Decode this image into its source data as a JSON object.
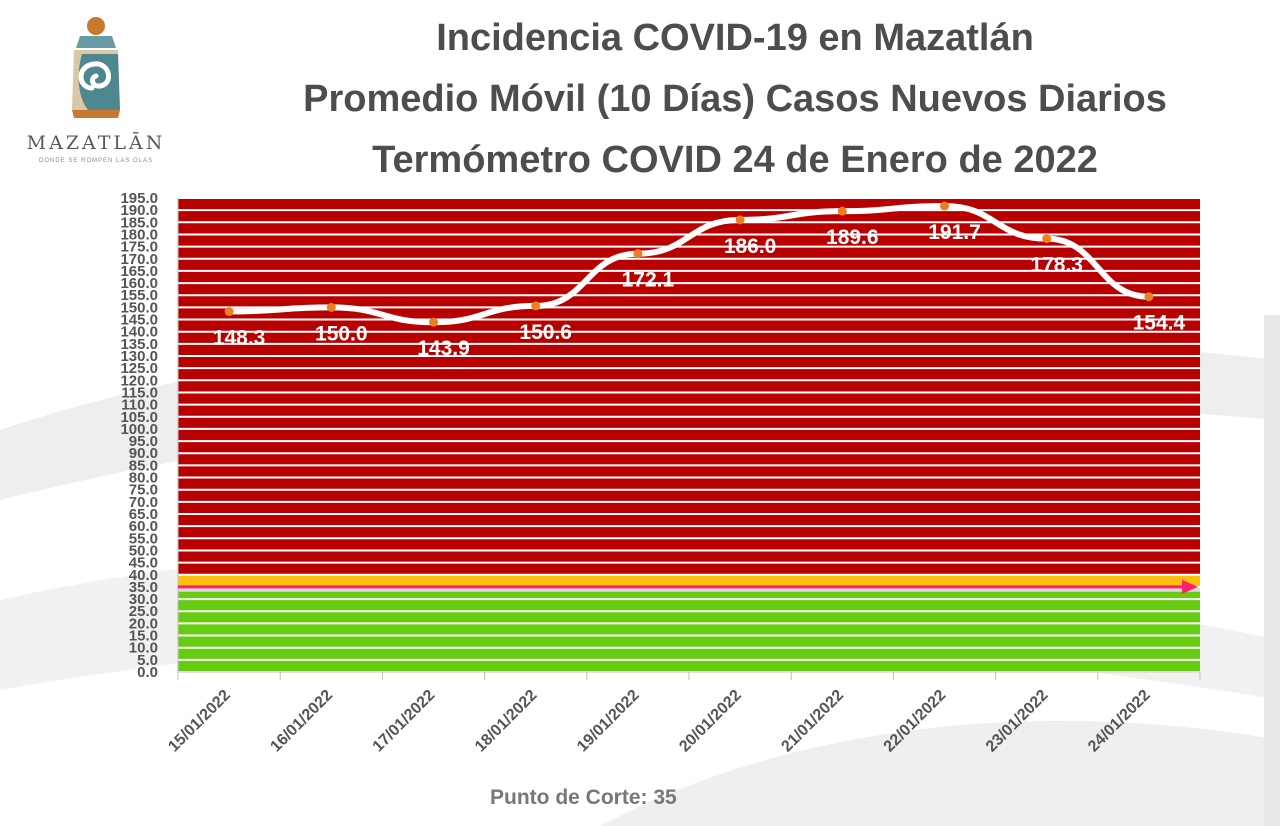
{
  "logo": {
    "wordmark": "MAZATLĀN",
    "tagline": "DONDE SE ROMPEN LAS OLAS"
  },
  "header": {
    "title_line1": "Incidencia COVID-19 en Mazatlán",
    "title_line2": "Promedio Móvil (10 Días) Casos Nuevos Diarios",
    "title_line3": "Termómetro COVID 24 de Enero de 2022"
  },
  "footer": {
    "cutoff_label": "Punto de Corte: 35"
  },
  "colors": {
    "red_zone": "#b90000",
    "yellow_zone": "#ffbf0f",
    "green_zone": "#66cc11",
    "line": "#ffffff",
    "marker": "#ef7d22",
    "cutoff_arrow": "#ff1f6b",
    "title_text": "#4d4d4d"
  },
  "chart_data": {
    "type": "line",
    "categories": [
      "15/01/2022",
      "16/01/2022",
      "17/01/2022",
      "18/01/2022",
      "19/01/2022",
      "20/01/2022",
      "21/01/2022",
      "22/01/2022",
      "23/01/2022",
      "24/01/2022"
    ],
    "series": [
      {
        "values": [
          148.3,
          150.0,
          143.9,
          150.6,
          172.1,
          186.0,
          189.6,
          191.7,
          178.3,
          154.4
        ]
      }
    ],
    "data_labels": [
      "148.3",
      "150.0",
      "143.9",
      "150.6",
      "172.1",
      "186.0",
      "189.6",
      "191.7",
      "178.3",
      "154.4"
    ],
    "ylim": [
      0,
      195
    ],
    "ytick_step": 5,
    "zones": [
      {
        "name": "green",
        "from": 0,
        "to": 33
      },
      {
        "name": "yellow",
        "from": 35,
        "to": 40
      },
      {
        "name": "red",
        "from": 40,
        "to": 195
      }
    ],
    "cutoff": 35,
    "xlabel": "",
    "ylabel": "",
    "grid": true,
    "legend": "none"
  }
}
